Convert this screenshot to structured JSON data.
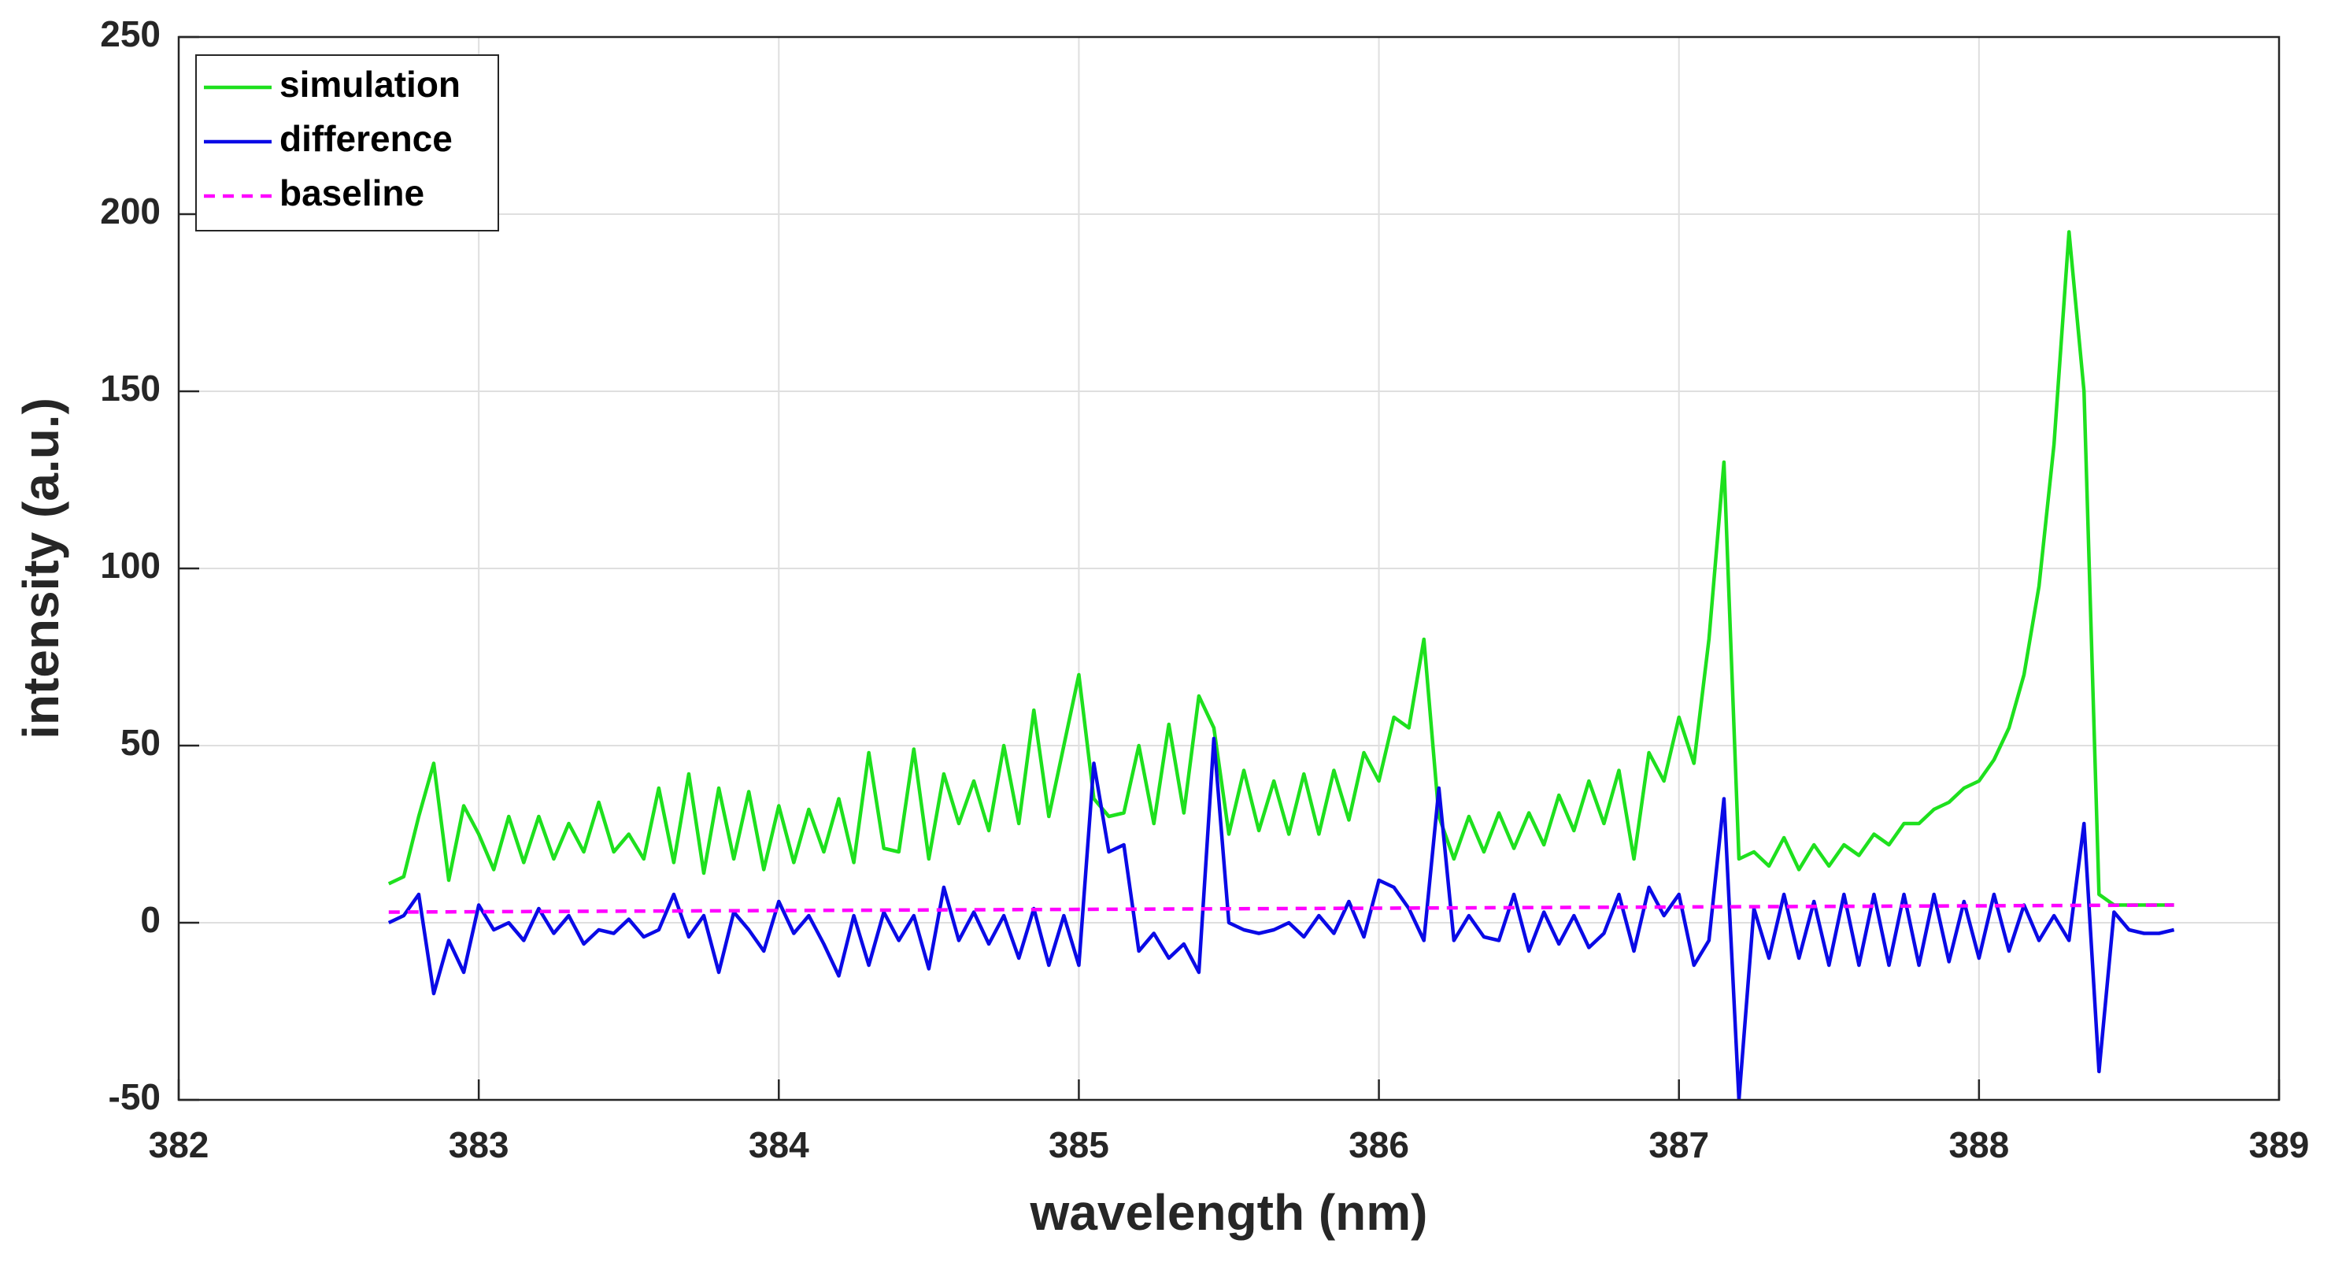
{
  "chart_data": {
    "type": "line",
    "xlabel": "wavelength (nm)",
    "ylabel": "intensity (a.u.)",
    "xlim": [
      382,
      389
    ],
    "xticks": [
      382,
      383,
      384,
      385,
      386,
      387,
      388,
      389
    ],
    "ylim": [
      -50,
      250
    ],
    "yticks": [
      -50,
      0,
      50,
      100,
      150,
      200,
      250
    ],
    "grid": true,
    "legend": "upper left",
    "x": [
      382.7,
      382.75,
      382.8,
      382.85,
      382.9,
      382.95,
      383.0,
      383.05,
      383.1,
      383.15,
      383.2,
      383.25,
      383.3,
      383.35,
      383.4,
      383.45,
      383.5,
      383.55,
      383.6,
      383.65,
      383.7,
      383.75,
      383.8,
      383.85,
      383.9,
      383.95,
      384.0,
      384.05,
      384.1,
      384.15,
      384.2,
      384.25,
      384.3,
      384.35,
      384.4,
      384.45,
      384.5,
      384.55,
      384.6,
      384.65,
      384.7,
      384.75,
      384.8,
      384.85,
      384.9,
      384.95,
      385.0,
      385.05,
      385.1,
      385.15,
      385.2,
      385.25,
      385.3,
      385.35,
      385.4,
      385.45,
      385.5,
      385.55,
      385.6,
      385.65,
      385.7,
      385.75,
      385.8,
      385.85,
      385.9,
      385.95,
      386.0,
      386.05,
      386.1,
      386.15,
      386.2,
      386.25,
      386.3,
      386.35,
      386.4,
      386.45,
      386.5,
      386.55,
      386.6,
      386.65,
      386.7,
      386.75,
      386.8,
      386.85,
      386.9,
      386.95,
      387.0,
      387.05,
      387.1,
      387.15,
      387.2,
      387.25,
      387.3,
      387.35,
      387.4,
      387.45,
      387.5,
      387.55,
      387.6,
      387.65,
      387.7,
      387.75,
      387.8,
      387.85,
      387.9,
      387.95,
      388.0,
      388.05,
      388.1,
      388.15,
      388.2,
      388.25,
      388.3,
      388.35,
      388.4,
      388.45,
      388.5,
      388.55,
      388.6,
      388.65
    ],
    "series": [
      {
        "name": "simulation",
        "color": "#1ee01e",
        "style": "solid",
        "values": [
          11,
          13,
          30,
          45,
          12,
          33,
          25,
          15,
          30,
          17,
          30,
          18,
          28,
          20,
          34,
          20,
          25,
          18,
          38,
          17,
          42,
          14,
          38,
          18,
          37,
          15,
          33,
          17,
          32,
          20,
          35,
          17,
          48,
          21,
          20,
          49,
          18,
          42,
          28,
          40,
          26,
          50,
          28,
          60,
          30,
          50,
          70,
          35,
          30,
          31,
          50,
          28,
          56,
          31,
          64,
          55,
          25,
          43,
          26,
          40,
          25,
          42,
          25,
          43,
          29,
          48,
          40,
          58,
          55,
          80,
          30,
          18,
          30,
          20,
          31,
          21,
          31,
          22,
          36,
          26,
          40,
          28,
          43,
          18,
          48,
          40,
          58,
          45,
          80,
          130,
          18,
          20,
          16,
          24,
          15,
          22,
          16,
          22,
          19,
          25,
          22,
          28,
          28,
          32,
          34,
          38,
          40,
          46,
          55,
          70,
          95,
          135,
          195,
          150,
          8,
          5,
          5,
          5,
          5,
          5
        ]
      },
      {
        "name": "difference",
        "color": "#0a0ae6",
        "style": "solid",
        "values": [
          0,
          2,
          8,
          -20,
          -5,
          -14,
          5,
          -2,
          0,
          -5,
          4,
          -3,
          2,
          -6,
          -2,
          -3,
          1,
          -4,
          -2,
          8,
          -4,
          2,
          -14,
          3,
          -2,
          -8,
          6,
          -3,
          2,
          -6,
          -15,
          2,
          -12,
          3,
          -5,
          2,
          -13,
          10,
          -5,
          3,
          -6,
          2,
          -10,
          4,
          -12,
          2,
          -12,
          45,
          20,
          22,
          -8,
          -3,
          -10,
          -6,
          -14,
          52,
          0,
          -2,
          -3,
          -2,
          0,
          -4,
          2,
          -3,
          6,
          -4,
          12,
          10,
          4,
          -5,
          38,
          -5,
          2,
          -4,
          -5,
          8,
          -8,
          3,
          -6,
          2,
          -7,
          -3,
          8,
          -8,
          10,
          2,
          8,
          -12,
          -5,
          35,
          -50,
          4,
          -10,
          8,
          -10,
          6,
          -12,
          8,
          -12,
          8,
          -12,
          8,
          -12,
          8,
          -11,
          6,
          -10,
          8,
          -8,
          5,
          -5,
          2,
          -5,
          28,
          -42,
          3,
          -2,
          -3,
          -3,
          -2
        ]
      },
      {
        "name": "baseline",
        "color": "#ff00ff",
        "style": "dashed",
        "x": [
          382.7,
          388.65
        ],
        "values": [
          3,
          5
        ]
      }
    ]
  }
}
